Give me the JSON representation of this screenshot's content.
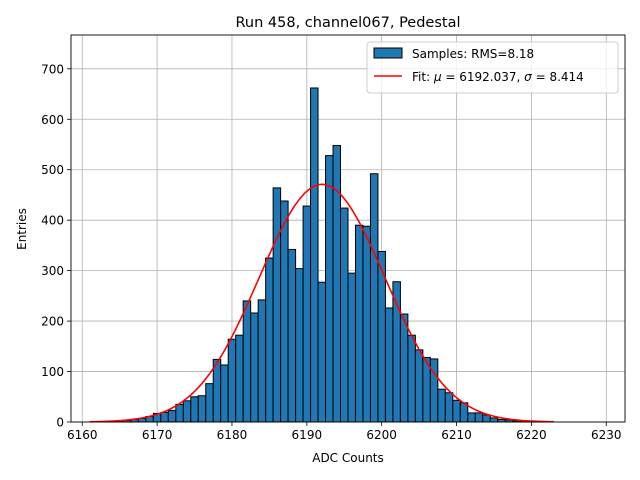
{
  "chart_data": {
    "type": "bar",
    "title": "Run 458, channel067, Pedestal",
    "xlabel": "ADC Counts",
    "ylabel": "Entries",
    "xlim": [
      6158.5,
      6232.5
    ],
    "ylim": [
      0,
      767
    ],
    "grid": true,
    "legend_position": "top-right",
    "xticks": [
      6160,
      6170,
      6180,
      6190,
      6200,
      6210,
      6220,
      6230
    ],
    "yticks": [
      0,
      100,
      200,
      300,
      400,
      500,
      600,
      700
    ],
    "series": [
      {
        "name": "Samples: RMS=8.18",
        "type": "histogram",
        "color": "#1f77b4",
        "bin_width": 1,
        "bin_edges_start": 6161.5,
        "values": [
          1,
          1,
          2,
          2,
          3,
          5,
          7,
          11,
          17,
          19,
          23,
          35,
          42,
          50,
          52,
          76,
          124,
          113,
          164,
          172,
          240,
          216,
          242,
          325,
          464,
          438,
          342,
          304,
          428,
          662,
          277,
          528,
          548,
          424,
          295,
          390,
          388,
          492,
          338,
          226,
          278,
          214,
          172,
          143,
          128,
          125,
          65,
          58,
          43,
          38,
          18,
          18,
          14,
          8,
          5,
          4,
          2,
          2,
          1,
          1,
          1
        ]
      },
      {
        "name": "Fit: μ = 6192.037, σ = 8.414",
        "legend_prefix": "Fit: ",
        "legend_mu": "μ",
        "legend_mu_value": " = 6192.037, ",
        "legend_sigma": "σ",
        "legend_sigma_value": " = 8.414",
        "type": "line",
        "color": "#ff0000",
        "fit": {
          "mu": 6192.037,
          "sigma": 8.414,
          "amplitude": 471,
          "x_range": [
            6161,
            6223
          ]
        }
      }
    ]
  }
}
